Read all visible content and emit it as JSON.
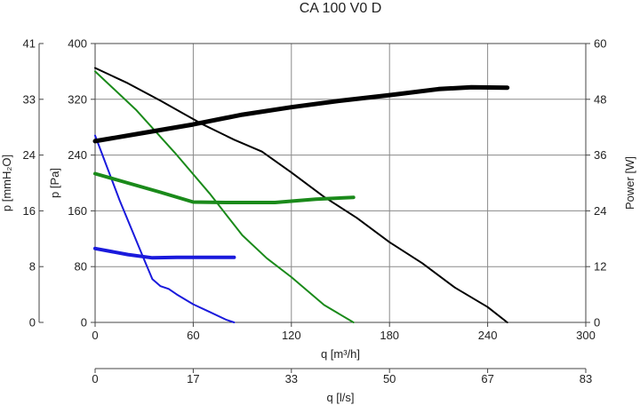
{
  "chart_data": {
    "type": "line",
    "title": "CA 100 V0 D",
    "xlabel": "q [m³/h]",
    "xlim": [
      0,
      300
    ],
    "xticks": [
      0,
      60,
      120,
      180,
      240,
      300
    ],
    "ylabel": "p [Pa]",
    "ylim": [
      0,
      400
    ],
    "yticks": [
      0,
      80,
      160,
      240,
      320,
      400
    ],
    "y2label": "p [mmH₂O]",
    "y2ticks": [
      "0",
      "8",
      "16",
      "24",
      "33",
      "41"
    ],
    "y3label": "Power [W]",
    "y3lim": [
      0,
      60
    ],
    "y3ticks": [
      0,
      12,
      24,
      36,
      48,
      60
    ],
    "x2label": "q [l/s]",
    "x2ticks": [
      "0",
      "17",
      "33",
      "50",
      "67",
      "83"
    ],
    "grid": true,
    "series": [
      {
        "axis": "pressure",
        "color": "#000000",
        "width": 2,
        "x": [
          0,
          20,
          40,
          65,
          85,
          102,
          120,
          140,
          160,
          180,
          200,
          220,
          240,
          252
        ],
        "y": [
          365,
          343,
          318,
          285,
          262,
          245,
          215,
          180,
          150,
          115,
          85,
          50,
          22,
          0
        ]
      },
      {
        "axis": "pressure",
        "color": "#1a8a1a",
        "width": 2,
        "x": [
          0,
          25,
          50,
          70,
          90,
          105,
          120,
          140,
          158
        ],
        "y": [
          360,
          305,
          240,
          185,
          125,
          92,
          65,
          25,
          0
        ]
      },
      {
        "axis": "pressure",
        "color": "#1a1adc",
        "width": 2,
        "x": [
          0,
          15,
          30,
          35,
          40,
          45,
          50,
          60,
          70,
          80,
          85
        ],
        "y": [
          268,
          175,
          90,
          62,
          52,
          48,
          40,
          26,
          15,
          4,
          0
        ]
      },
      {
        "axis": "power",
        "color": "#000000",
        "width": 5,
        "x": [
          0,
          30,
          60,
          90,
          120,
          150,
          180,
          210,
          230,
          252
        ],
        "y": [
          39,
          40.8,
          42.6,
          44.7,
          46.3,
          47.7,
          48.9,
          50.2,
          50.6,
          50.5
        ]
      },
      {
        "axis": "power",
        "color": "#1a8a1a",
        "width": 4,
        "x": [
          0,
          20,
          40,
          60,
          80,
          110,
          135,
          158
        ],
        "y": [
          32,
          30,
          28,
          25.9,
          25.8,
          25.8,
          26.5,
          26.9
        ]
      },
      {
        "axis": "power",
        "color": "#1a1adc",
        "width": 4,
        "x": [
          0,
          20,
          35,
          50,
          65,
          85
        ],
        "y": [
          15.9,
          14.6,
          13.9,
          14,
          14,
          14
        ]
      }
    ]
  }
}
